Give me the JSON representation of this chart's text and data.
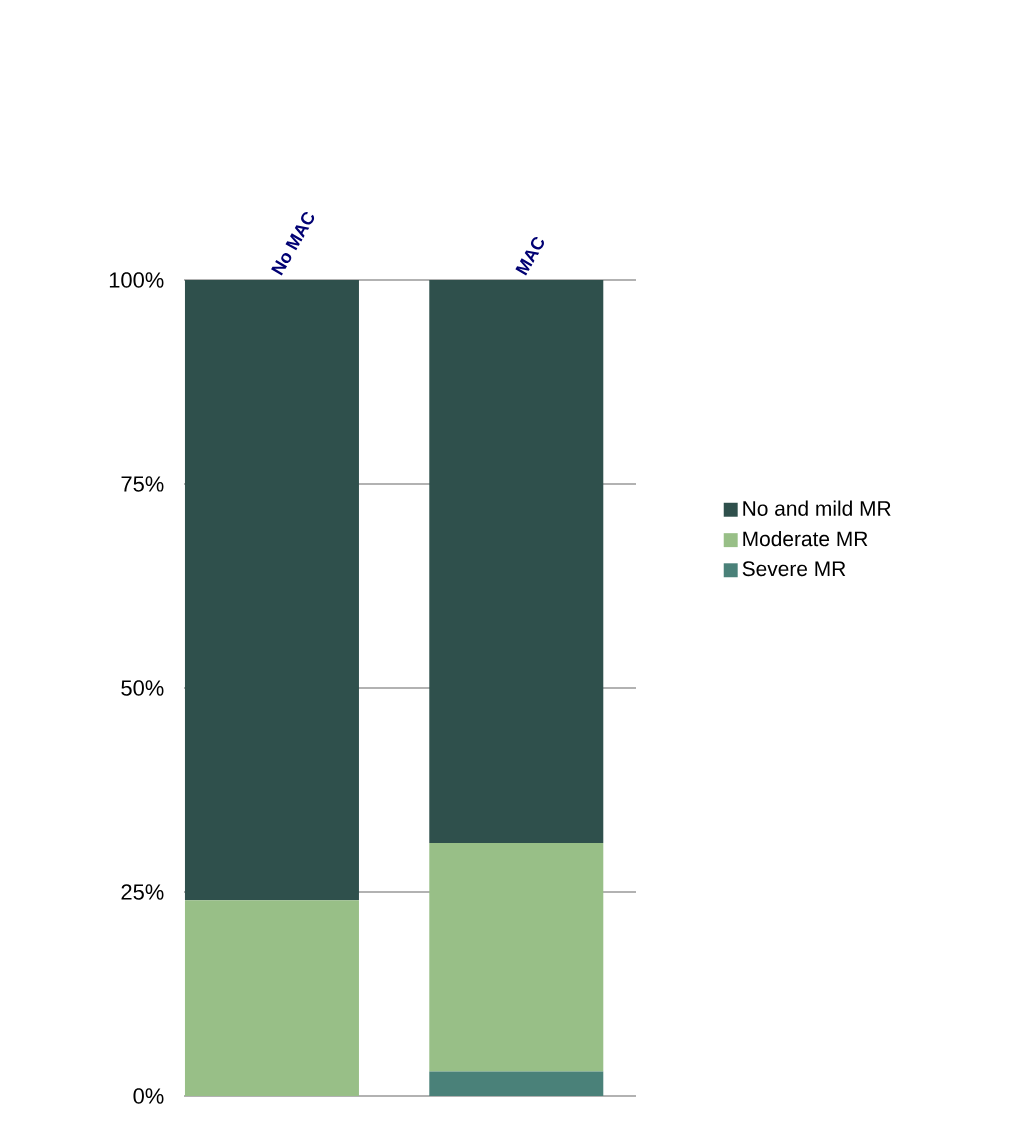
{
  "chart_data": {
    "type": "bar",
    "stacked": true,
    "categories": [
      "No MAC",
      "MAC"
    ],
    "series": [
      {
        "name": "Severe MR",
        "color": "#4a8179",
        "values": [
          0,
          3
        ]
      },
      {
        "name": "Moderate MR",
        "color": "#98bf87",
        "values": [
          24,
          28
        ]
      },
      {
        "name": "No and mild MR",
        "color": "#2f504c",
        "values": [
          76,
          69
        ]
      }
    ],
    "ylim": [
      0,
      100
    ],
    "yticks": [
      {
        "value": 0,
        "label": "0%"
      },
      {
        "value": 25,
        "label": "25%"
      },
      {
        "value": 50,
        "label": "50%"
      },
      {
        "value": 75,
        "label": "75%"
      },
      {
        "value": 100,
        "label": "100%"
      }
    ],
    "grid": "y",
    "legend": "right"
  }
}
